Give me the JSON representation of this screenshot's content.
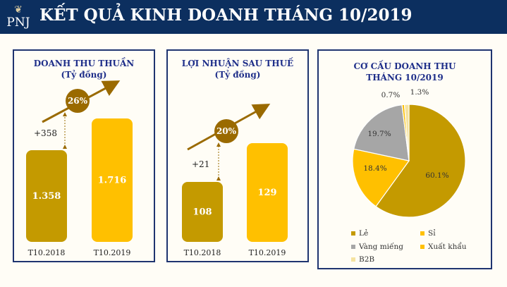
{
  "header": {
    "logo_text": "PNJ",
    "title": "KẾT QUẢ KINH DOANH THÁNG 10/2019"
  },
  "colors": {
    "navy": "#0c2f5f",
    "dark_gold": "#c49a00",
    "gold": "#ffc000",
    "brown": "#9a6a00",
    "gray": "#a6a6a6",
    "cream": "#f5e3a0"
  },
  "revenue": {
    "title_line1": "DOANH THU THUẦN",
    "title_line2": "(Tỷ đồng)",
    "growth": "26%",
    "delta": "+358",
    "chart_data": {
      "type": "bar",
      "categories": [
        "T10.2018",
        "T10.2019"
      ],
      "values": [
        1358,
        1716
      ],
      "labels": [
        "1.358",
        "1.716"
      ]
    }
  },
  "profit": {
    "title_line1": "LỢI NHUẬN SAU THUẾ",
    "title_line2": "(Tỷ đồng)",
    "growth": "20%",
    "delta": "+21",
    "chart_data": {
      "type": "bar",
      "categories": [
        "T10.2018",
        "T10.2019"
      ],
      "values": [
        108,
        129
      ],
      "labels": [
        "108",
        "129"
      ]
    }
  },
  "mix": {
    "title_line1": "CƠ CẤU DOANH THU",
    "title_line2": "THÁNG 10/2019",
    "chart_data": {
      "type": "pie",
      "legend_position": "bottom",
      "slices": [
        {
          "name": "Lẻ",
          "value": 60.1,
          "label": "60.1%",
          "color": "#c49a00"
        },
        {
          "name": "Sỉ",
          "value": 18.4,
          "label": "18.4%",
          "color": "#ffc000"
        },
        {
          "name": "Vàng miếng",
          "value": 19.7,
          "label": "19.7%",
          "color": "#a6a6a6"
        },
        {
          "name": "Xuất khẩu",
          "value": 0.7,
          "label": "0.7%",
          "color": "#ffc000"
        },
        {
          "name": "B2B",
          "value": 1.3,
          "label": "1.3%",
          "color": "#f5e3a0"
        }
      ]
    }
  }
}
